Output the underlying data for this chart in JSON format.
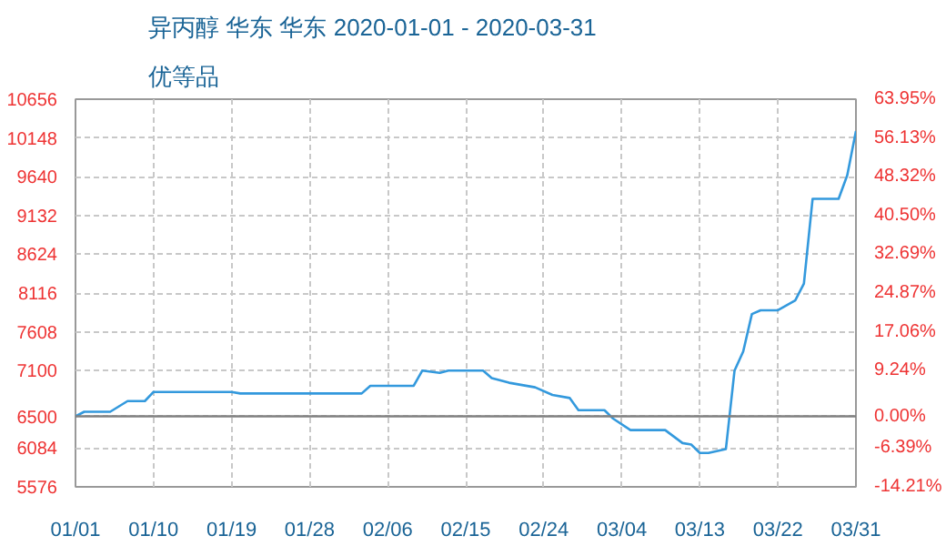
{
  "chart_data": {
    "type": "line",
    "title": "异丙醇 华东 华东 2020-01-01 - 2020-03-31",
    "subtitle": "优等品",
    "x": [
      "2020-01-01",
      "2020-01-02",
      "2020-01-05",
      "2020-01-07",
      "2020-01-09",
      "2020-01-10",
      "2020-01-19",
      "2020-01-20",
      "2020-02-03",
      "2020-02-04",
      "2020-02-09",
      "2020-02-10",
      "2020-02-12",
      "2020-02-13",
      "2020-02-17",
      "2020-02-18",
      "2020-02-20",
      "2020-02-23",
      "2020-02-25",
      "2020-02-27",
      "2020-02-28",
      "2020-03-02",
      "2020-03-03",
      "2020-03-05",
      "2020-03-09",
      "2020-03-11",
      "2020-03-12",
      "2020-03-13",
      "2020-03-14",
      "2020-03-16",
      "2020-03-17",
      "2020-03-18",
      "2020-03-19",
      "2020-03-20",
      "2020-03-22",
      "2020-03-24",
      "2020-03-25",
      "2020-03-26",
      "2020-03-29",
      "2020-03-30",
      "2020-03-31"
    ],
    "series": [
      {
        "color": "#3399dd",
        "values": [
          6500,
          6560,
          6560,
          6700,
          6700,
          6820,
          6820,
          6800,
          6800,
          6900,
          6900,
          7100,
          7070,
          7100,
          7100,
          7000,
          6940,
          6880,
          6780,
          6740,
          6580,
          6580,
          6470,
          6320,
          6320,
          6150,
          6130,
          6020,
          6020,
          6070,
          7100,
          7350,
          7840,
          7890,
          7890,
          8020,
          8240,
          9350,
          9350,
          9660,
          10240
        ]
      }
    ],
    "xlim": [
      "2020-01-01",
      "2020-03-31"
    ],
    "xticks": [
      {
        "value": "2020-01-01",
        "label": "01/01"
      },
      {
        "value": "2020-01-10",
        "label": "01/10"
      },
      {
        "value": "2020-01-19",
        "label": "01/19"
      },
      {
        "value": "2020-01-28",
        "label": "01/28"
      },
      {
        "value": "2020-02-06",
        "label": "02/06"
      },
      {
        "value": "2020-02-15",
        "label": "02/15"
      },
      {
        "value": "2020-02-24",
        "label": "02/24"
      },
      {
        "value": "2020-03-04",
        "label": "03/04"
      },
      {
        "value": "2020-03-13",
        "label": "03/13"
      },
      {
        "value": "2020-03-22",
        "label": "03/22"
      },
      {
        "value": "2020-03-31",
        "label": "03/31"
      }
    ],
    "ylim": [
      5576,
      10656
    ],
    "yticks": [
      5576,
      6084,
      6500,
      7100,
      7608,
      8116,
      8624,
      9132,
      9640,
      10148,
      10656
    ],
    "y2lim": [
      -14.21,
      63.95
    ],
    "y2ticks": [
      {
        "value": -14.21,
        "label": "-14.21%"
      },
      {
        "value": -6.39,
        "label": "-6.39%"
      },
      {
        "value": 0,
        "label": "0.00%"
      },
      {
        "value": 9.24,
        "label": "9.24%"
      },
      {
        "value": 17.06,
        "label": "17.06%"
      },
      {
        "value": 24.87,
        "label": "24.87%"
      },
      {
        "value": 32.69,
        "label": "32.69%"
      },
      {
        "value": 40.5,
        "label": "40.50%"
      },
      {
        "value": 48.32,
        "label": "48.32%"
      },
      {
        "value": 56.13,
        "label": "56.13%"
      },
      {
        "value": 63.95,
        "label": "63.95%"
      }
    ],
    "ref_lines": [
      {
        "axis": "y",
        "value": 6500,
        "color": "#808080"
      }
    ],
    "grid": true,
    "marker": "none",
    "line_style": "solid"
  }
}
